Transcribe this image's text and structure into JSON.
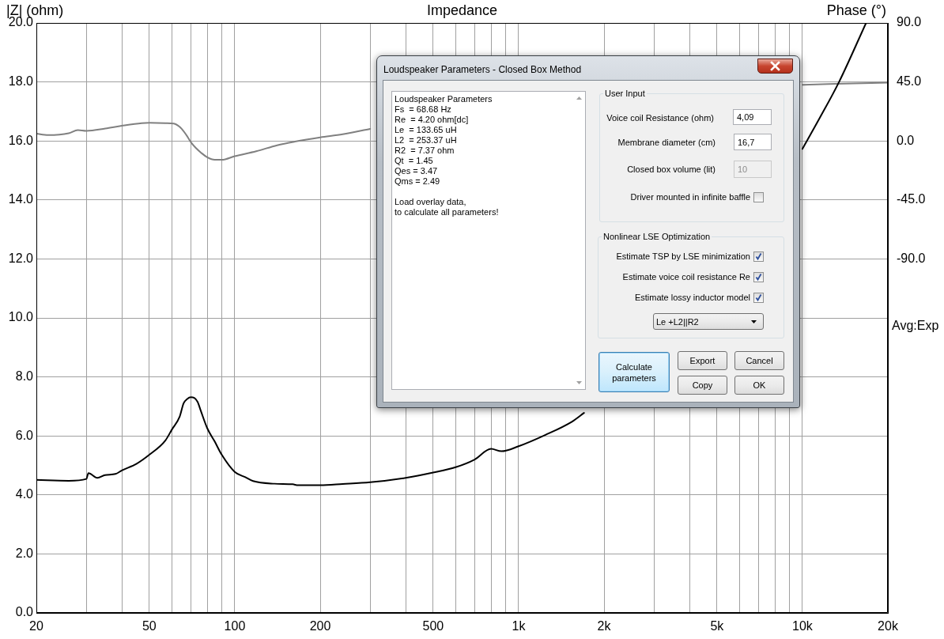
{
  "chart_data": {
    "type": "line",
    "title": "Impedance",
    "ylabel": "|Z| (ohm)",
    "y2label": "Phase (°)",
    "annotations": [
      "Avg:Exp",
      "Loudspeaker Parameters - Closed Box Method",
      "Loudspeaker Parameters",
      "Fs  = 68.68 Hz",
      "Re  = 4.20 ohm[dc]",
      "Le  = 133.65 uH",
      "L2  = 253.37 uH",
      "R2  = 7.37 ohm",
      "Qt  = 1.45",
      "Qes = 3.47",
      "Qms = 2.49",
      "Load overlay data,",
      "to calculate all parameters!",
      "User Input",
      "Voice coil Resistance (ohm)",
      "4,09",
      "Membrane diameter (cm)",
      "16,7",
      "Closed box volume (lit)",
      "10",
      "Driver mounted in infinite baffle",
      "Nonlinear LSE Optimization",
      "Estimate TSP by LSE minimization",
      "Estimate voice coil resistance Re",
      "Estimate lossy inductor model",
      "Le +L2||R2",
      "Calculate parameters",
      "Export",
      "Cancel",
      "Copy",
      "OK"
    ],
    "log": "x",
    "grid": true,
    "xlim": [
      20,
      20000
    ],
    "xticks": [
      20,
      {
        "value": 30,
        "label": null
      },
      {
        "value": 40,
        "label": null
      },
      50,
      {
        "value": 60,
        "label": null
      },
      {
        "value": 70,
        "label": null
      },
      {
        "value": 80,
        "label": null
      },
      {
        "value": 90,
        "label": null
      },
      100,
      200,
      {
        "value": 300,
        "label": null
      },
      {
        "value": 400,
        "label": null
      },
      500,
      {
        "value": 600,
        "label": null
      },
      {
        "value": 700,
        "label": null
      },
      {
        "value": 800,
        "label": null
      },
      {
        "value": 900,
        "label": null
      },
      {
        "value": 1000,
        "label": "1k"
      },
      {
        "value": 2000,
        "label": "2k"
      },
      {
        "value": 3000,
        "label": null
      },
      {
        "value": 4000,
        "label": null
      },
      {
        "value": 5000,
        "label": "5k"
      },
      {
        "value": 6000,
        "label": null
      },
      {
        "value": 7000,
        "label": null
      },
      {
        "value": 8000,
        "label": null
      },
      {
        "value": 9000,
        "label": null
      },
      {
        "value": 10000,
        "label": "10k"
      },
      {
        "value": 20000,
        "label": "20k"
      }
    ],
    "ylim": [
      0,
      20
    ],
    "yticks": [
      {
        "value": 0,
        "label": "0.0"
      },
      {
        "value": 2,
        "label": "2.0"
      },
      {
        "value": 4,
        "label": "4.0"
      },
      {
        "value": 6,
        "label": "6.0"
      },
      {
        "value": 8,
        "label": "8.0"
      },
      {
        "value": 10,
        "label": "10.0"
      },
      {
        "value": 12,
        "label": "12.0"
      },
      {
        "value": 14,
        "label": "14.0"
      },
      {
        "value": 16,
        "label": "16.0"
      },
      {
        "value": 18,
        "label": "18.0"
      },
      {
        "value": 20,
        "label": "20.0"
      }
    ],
    "y2lim": [
      -360,
      90
    ],
    "y2ticks": [
      {
        "value": 90,
        "label": "90.0"
      },
      {
        "value": 45,
        "label": "45.0"
      },
      {
        "value": 0,
        "label": "0.0"
      },
      {
        "value": -45,
        "label": "-45.0"
      },
      {
        "value": -90,
        "label": "-90.0"
      }
    ],
    "series": [
      {
        "color": "#000000",
        "x": [
          20,
          26,
          30,
          30.5,
          32.8,
          34.9,
          38,
          40,
          45,
          50,
          57,
          60,
          64,
          66,
          68,
          70,
          72,
          74,
          76,
          80,
          85,
          90,
          100,
          109,
          116,
          138,
          160,
          167,
          200,
          240,
          300,
          400,
          500,
          600,
          700,
          800,
          870,
          1000,
          1240,
          1540,
          1700,
          4000,
          10000,
          11480,
          13460,
          16760
        ],
        "values": [
          4.51,
          4.48,
          4.54,
          4.74,
          4.58,
          4.67,
          4.71,
          4.83,
          5.05,
          5.36,
          5.85,
          6.21,
          6.66,
          7.1,
          7.25,
          7.31,
          7.29,
          7.15,
          6.84,
          6.26,
          5.81,
          5.36,
          4.78,
          4.6,
          4.47,
          4.38,
          4.36,
          4.33,
          4.33,
          4.37,
          4.43,
          4.58,
          4.76,
          4.94,
          5.2,
          5.56,
          5.48,
          5.65,
          6.03,
          6.48,
          6.78,
          null,
          15.73,
          16.76,
          18.0,
          20.0
        ]
      },
      {
        "color": "#808080",
        "axis": "y2",
        "x": [
          20,
          22,
          26,
          28,
          30,
          35,
          40,
          47,
          50,
          57,
          61,
          63,
          65,
          68,
          70,
          73,
          76,
          80,
          85,
          90,
          100,
          119,
          141,
          163,
          200,
          240,
          300,
          2000,
          10000,
          13000,
          20000
        ],
        "values": [
          5.5,
          4.5,
          5.9,
          8.3,
          7.7,
          9.5,
          11.6,
          13.6,
          13.8,
          13.6,
          13.2,
          11.8,
          9.2,
          3.5,
          -0.9,
          -5.5,
          -8.9,
          -12.5,
          -14.4,
          -14.4,
          -11.6,
          -7.9,
          -3.3,
          -0.5,
          2.7,
          5.1,
          9.2,
          null,
          42.8,
          43.5,
          44.5
        ]
      }
    ]
  }
}
